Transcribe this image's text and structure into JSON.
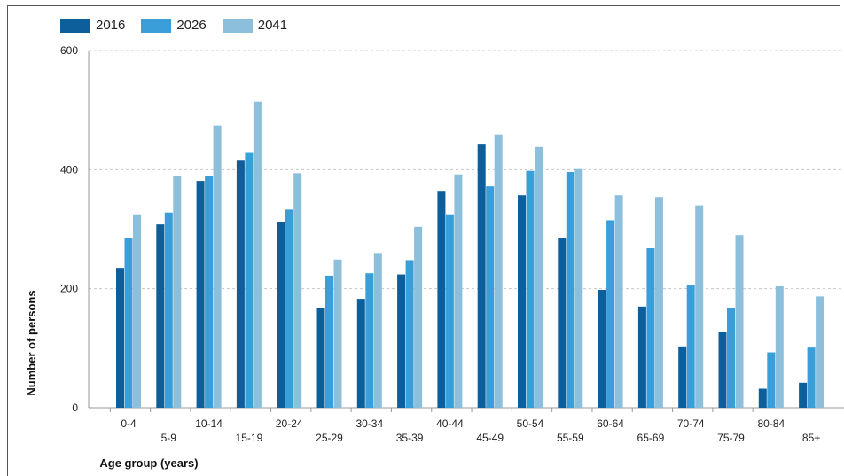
{
  "chart_data": {
    "type": "bar",
    "title": "",
    "xlabel": "Age group (years)",
    "ylabel": "Number of persons",
    "ylim": [
      0,
      600
    ],
    "yticks": [
      0,
      200,
      400,
      600
    ],
    "grid": true,
    "legend_position": "top-left",
    "categories": [
      "0-4",
      "5-9",
      "10-14",
      "15-19",
      "20-24",
      "25-29",
      "30-34",
      "35-39",
      "40-44",
      "45-49",
      "50-54",
      "55-59",
      "60-64",
      "65-69",
      "70-74",
      "75-79",
      "80-84",
      "85+"
    ],
    "series": [
      {
        "name": "2016",
        "color": "#0c5f9a",
        "values": [
          235,
          308,
          381,
          415,
          312,
          167,
          183,
          224,
          363,
          442,
          357,
          285,
          198,
          170,
          103,
          128,
          32,
          42
        ]
      },
      {
        "name": "2026",
        "color": "#3a9ed8",
        "values": [
          285,
          328,
          390,
          428,
          333,
          222,
          226,
          248,
          325,
          372,
          398,
          396,
          315,
          268,
          206,
          168,
          93,
          101
        ]
      },
      {
        "name": "2041",
        "color": "#8bbfdc",
        "values": [
          325,
          390,
          474,
          514,
          394,
          249,
          260,
          304,
          392,
          459,
          438,
          401,
          357,
          354,
          340,
          290,
          204,
          187
        ]
      }
    ]
  }
}
